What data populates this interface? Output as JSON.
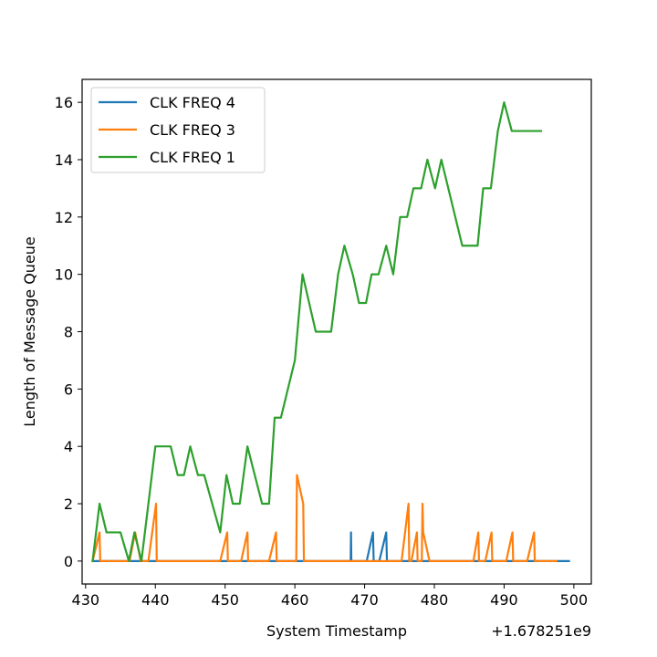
{
  "chart_data": {
    "type": "line",
    "xlabel": "System Timestamp",
    "ylabel": "Length of Message Queue",
    "offset_label": "+1.678251e9",
    "xlim": [
      429.5,
      502.5
    ],
    "ylim": [
      -0.8,
      16.8
    ],
    "xticks": [
      430,
      440,
      450,
      460,
      470,
      480,
      490,
      500
    ],
    "yticks": [
      0,
      2,
      4,
      6,
      8,
      10,
      12,
      14,
      16
    ],
    "legend_position": "upper-left",
    "grid": false,
    "series": [
      {
        "name": "CLK FREQ 4",
        "color": "#1f77b4",
        "x": [
          431,
          468.0,
          468.05,
          468.1,
          470.3,
          471.2,
          471.3,
          472.1,
          473.1,
          473.2,
          499.3
        ],
        "y": [
          0,
          0,
          1,
          0,
          0,
          1,
          0,
          0,
          1,
          0,
          0
        ]
      },
      {
        "name": "CLK FREQ 3",
        "color": "#ff7f0e",
        "x": [
          431,
          432.0,
          432.1,
          436.3,
          437.1,
          437.9,
          439.0,
          440.1,
          440.2,
          449.3,
          450.3,
          450.4,
          452.3,
          453.2,
          453.3,
          456.3,
          457.3,
          457.4,
          460.2,
          460.3,
          461.2,
          461.3,
          475.3,
          476.3,
          476.4,
          476.7,
          477.5,
          477.6,
          478.2,
          478.3,
          478.4,
          479.3,
          485.6,
          486.3,
          486.4,
          487.3,
          488.2,
          488.3,
          490.3,
          491.2,
          491.3,
          493.3,
          494.3,
          494.4,
          497.5
        ],
        "y": [
          0,
          1,
          0,
          0,
          1,
          0,
          0,
          2,
          0,
          0,
          1,
          0,
          0,
          1,
          0,
          0,
          1,
          0,
          0,
          3,
          2,
          0,
          0,
          2,
          0,
          0,
          1,
          0,
          0,
          2,
          1,
          0,
          0,
          1,
          0,
          0,
          1,
          0,
          0,
          1,
          0,
          0,
          1,
          0,
          0
        ]
      },
      {
        "name": "CLK FREQ 1",
        "color": "#2ca02c",
        "x": [
          431,
          432.0,
          433.0,
          435.0,
          436.2,
          437.0,
          438.0,
          440.0,
          442.2,
          443.2,
          444.1,
          445.0,
          446.1,
          447.0,
          449.3,
          450.2,
          451.1,
          452.1,
          453.2,
          455.3,
          456.3,
          457.1,
          458.0,
          460.0,
          461.1,
          463.0,
          465.2,
          466.2,
          467.1,
          468.3,
          469.2,
          470.2,
          471.0,
          472.0,
          473.1,
          474.1,
          475.1,
          476.1,
          477.0,
          478.1,
          479.0,
          480.1,
          481.0,
          484.0,
          486.2,
          487.0,
          488.1,
          489.1,
          490.0,
          491.1,
          495.3
        ],
        "y": [
          0,
          2,
          1,
          1,
          0,
          1,
          0,
          4,
          4,
          3,
          3,
          4,
          3,
          3,
          1,
          3,
          2,
          2,
          4,
          2,
          2,
          5,
          5,
          7,
          10,
          8,
          8,
          10,
          11,
          10,
          9,
          9,
          10,
          10,
          11,
          10,
          12,
          12,
          13,
          13,
          14,
          13,
          14,
          11,
          11,
          13,
          13,
          15,
          16,
          15,
          15
        ]
      }
    ]
  }
}
